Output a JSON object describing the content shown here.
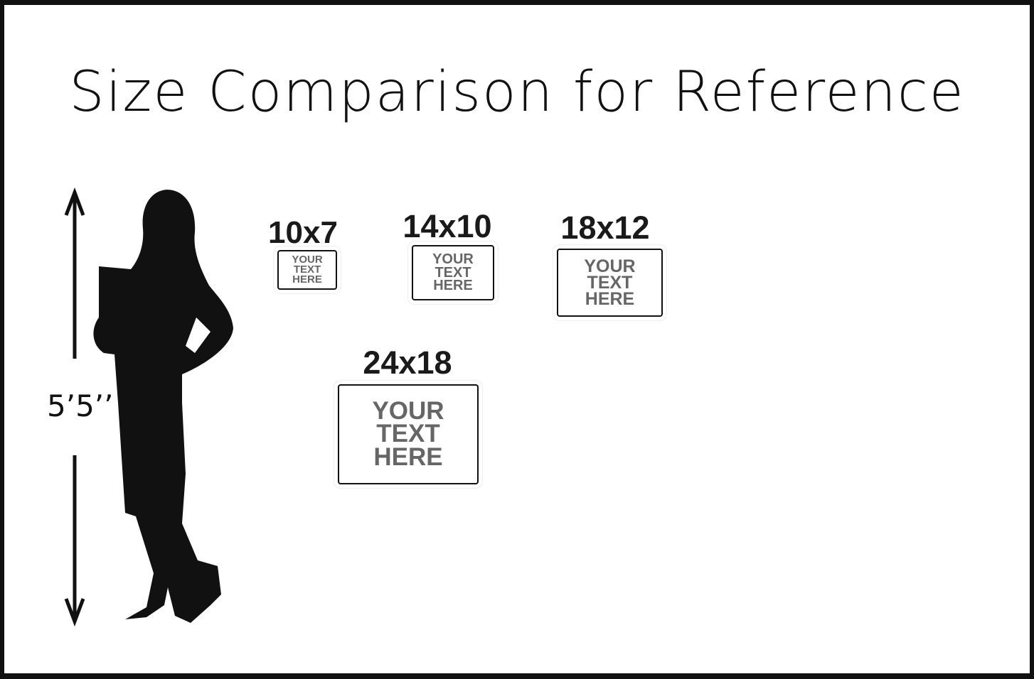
{
  "title": "Size Comparison for Reference",
  "person_height": "5’5’’",
  "signs": [
    {
      "size": "10x7",
      "lines": [
        "YOUR",
        "TEXT",
        "HERE"
      ]
    },
    {
      "size": "14x10",
      "lines": [
        "YOUR",
        "TEXT",
        "HERE"
      ]
    },
    {
      "size": "18x12",
      "lines": [
        "YOUR",
        "TEXT",
        "HERE"
      ]
    },
    {
      "size": "24x18",
      "lines": [
        "YOUR",
        "TEXT",
        "HERE"
      ]
    }
  ],
  "colors": {
    "ink": "#111111",
    "sign_text": "#666666"
  }
}
